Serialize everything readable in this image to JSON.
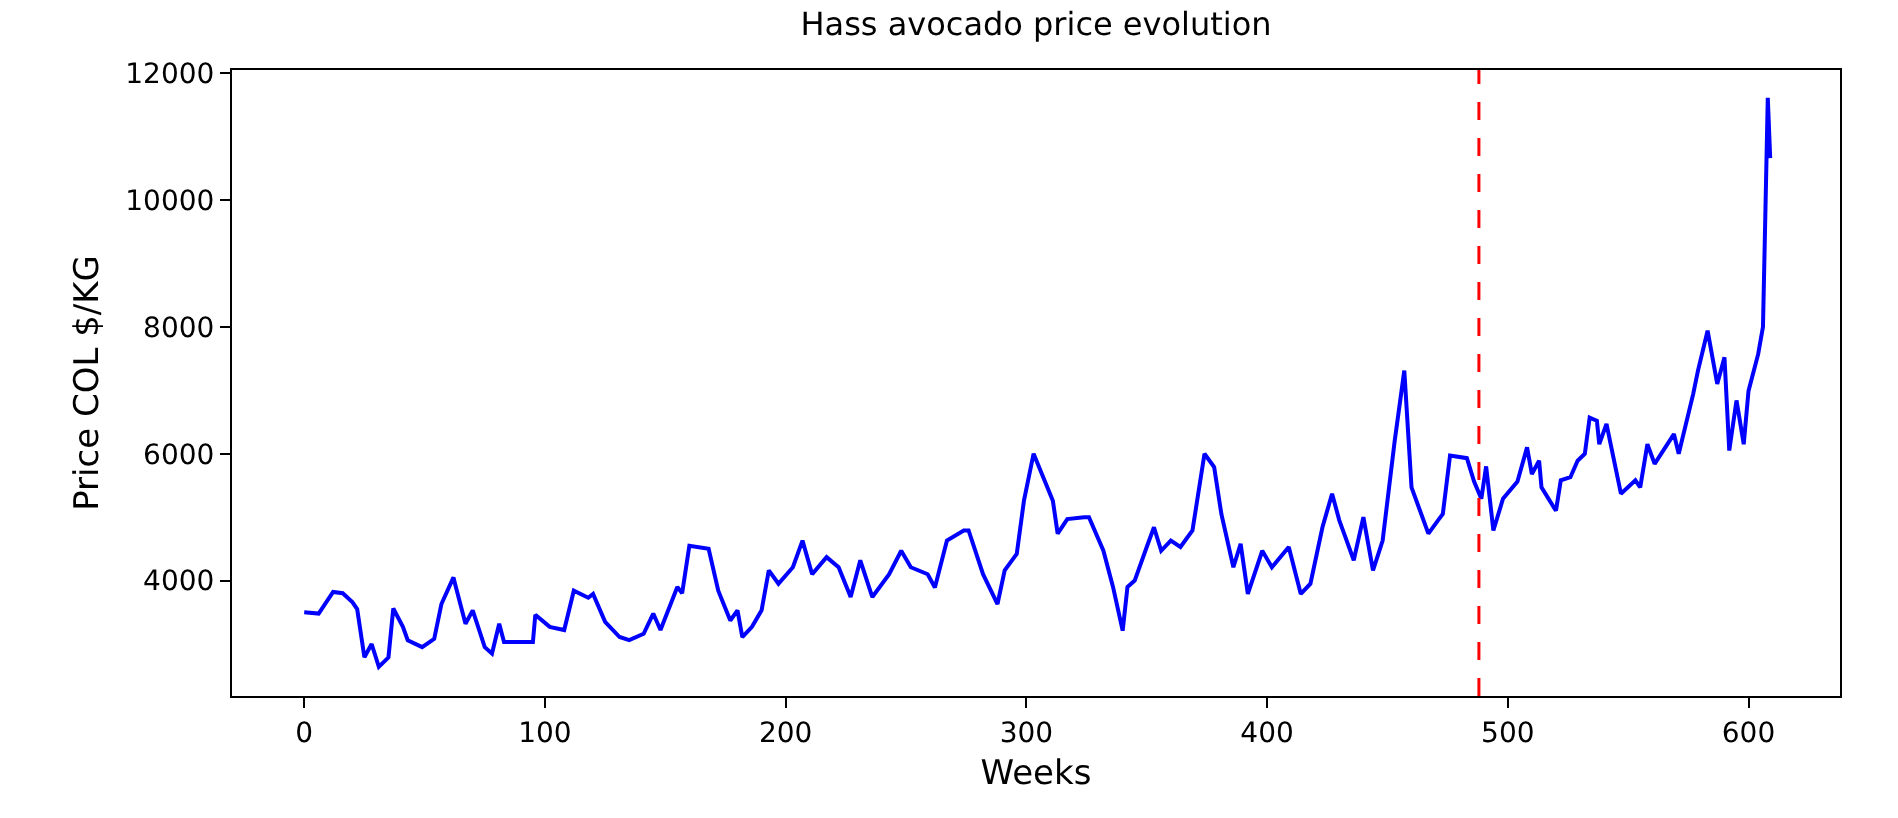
{
  "chart_data": {
    "type": "line",
    "title": "Hass avocado price evolution",
    "xlabel": "Weeks",
    "ylabel": "Price COL $/KG",
    "series": [
      {
        "color": "#0000ff",
        "x": [
          0,
          6,
          12,
          16,
          20,
          22,
          25,
          28,
          31,
          35,
          37,
          41,
          43,
          49,
          54,
          57,
          62,
          63,
          67,
          70,
          75,
          78,
          81,
          83,
          95,
          96,
          102,
          108,
          112,
          118,
          120,
          125,
          131,
          135,
          141,
          145,
          148,
          155,
          157,
          160,
          168,
          172,
          177,
          180,
          182,
          186,
          190,
          193,
          197,
          203,
          207,
          211,
          217,
          222,
          227,
          231,
          236,
          243,
          248,
          252,
          259,
          262,
          267,
          274,
          276,
          282,
          288,
          291,
          296,
          299,
          303,
          311,
          313,
          317,
          324,
          326,
          332,
          336,
          340,
          342,
          345,
          350,
          353,
          356,
          360,
          364,
          369,
          374,
          378,
          381,
          386,
          389,
          392,
          398,
          402,
          409,
          414,
          418,
          423,
          427,
          430,
          432,
          436,
          440,
          444,
          448,
          453,
          457,
          460,
          467,
          471,
          473,
          476,
          483,
          486,
          489,
          491,
          494,
          498,
          504,
          508,
          510,
          513,
          514,
          520,
          522,
          526,
          529,
          532,
          534,
          537,
          538,
          541,
          543,
          547,
          553,
          555,
          558,
          561,
          569,
          571,
          577,
          579,
          583,
          587,
          590,
          592,
          595,
          598,
          600,
          604,
          606,
          608,
          609
        ],
        "values": [
          3500,
          3480,
          3820,
          3800,
          3660,
          3550,
          2790,
          3000,
          2640,
          2790,
          3560,
          3270,
          3060,
          2950,
          3080,
          3630,
          4050,
          3900,
          3320,
          3530,
          2950,
          2850,
          3320,
          3030,
          3030,
          3460,
          3270,
          3220,
          3840,
          3730,
          3790,
          3350,
          3110,
          3060,
          3160,
          3480,
          3220,
          3900,
          3800,
          4550,
          4500,
          3840,
          3370,
          3530,
          3110,
          3270,
          3530,
          4160,
          3950,
          4210,
          4630,
          4100,
          4370,
          4210,
          3740,
          4320,
          3740,
          4100,
          4470,
          4210,
          4100,
          3890,
          4630,
          4790,
          4790,
          4100,
          3630,
          4160,
          4420,
          5260,
          6000,
          5260,
          4740,
          4970,
          5000,
          5000,
          4470,
          3900,
          3210,
          3900,
          4000,
          4530,
          4840,
          4470,
          4630,
          4530,
          4790,
          6000,
          5790,
          5050,
          4210,
          4580,
          3790,
          4470,
          4210,
          4530,
          3790,
          3950,
          4840,
          5370,
          4950,
          4740,
          4320,
          5000,
          4160,
          4630,
          6200,
          7310,
          5470,
          4740,
          4950,
          5050,
          5970,
          5930,
          5560,
          5290,
          5800,
          4790,
          5290,
          5560,
          6100,
          5680,
          5890,
          5470,
          5100,
          5580,
          5630,
          5890,
          6000,
          6570,
          6520,
          6150,
          6470,
          6100,
          5370,
          5580,
          5470,
          6150,
          5840,
          6310,
          6000,
          6940,
          7310,
          7940,
          7100,
          7520,
          6050,
          6840,
          6150,
          6990,
          7570,
          8000,
          11610,
          10660
        ]
      }
    ],
    "xlim": [
      -30,
      638
    ],
    "xticks": [
      0,
      100,
      200,
      300,
      400,
      500,
      600
    ],
    "ylim": [
      2180,
      12050
    ],
    "yticks": [
      4000,
      6000,
      8000,
      10000,
      12000
    ],
    "ref_lines": [
      {
        "axis": "x",
        "value": 488,
        "color": "#ff0000",
        "line_style": "dashed"
      }
    ],
    "line_style": "solid",
    "marker": "none"
  }
}
